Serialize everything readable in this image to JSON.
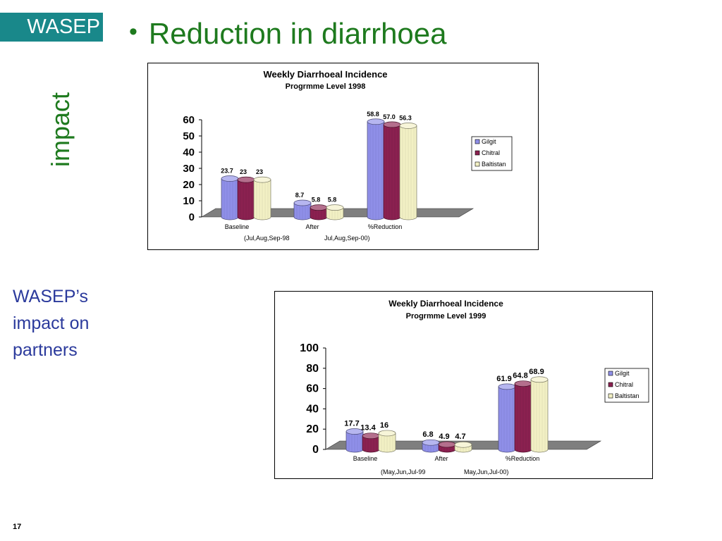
{
  "logo": {
    "text": "WASEP"
  },
  "slide": {
    "bullet": "•",
    "title": "Reduction in diarrhoea",
    "vertical_label": "impact",
    "side_lines": [
      "WASEP’s",
      "impact on",
      "partners"
    ],
    "page_number": "17"
  },
  "colors": {
    "gilgit": "#8f8fe8",
    "chitral": "#8b2150",
    "baltistan": "#f2f0c4",
    "floor": "#7f7f7f",
    "title_green": "#1e7a1e",
    "side_blue": "#2b3a9c",
    "logo_teal": "#19888a"
  },
  "chart_data": [
    {
      "type": "bar",
      "title": "Weekly Diarrhoeal Incidence",
      "subtitle": "Progrmme Level 1998",
      "categories": [
        "Baseline",
        "After",
        "%Reduction"
      ],
      "series": [
        {
          "name": "Gilgit",
          "values": [
            23.7,
            8.7,
            58.8
          ],
          "labels": [
            "23.7",
            "8.7",
            "58.8"
          ]
        },
        {
          "name": "Chitral",
          "values": [
            23,
            5.8,
            57.0
          ],
          "labels": [
            "23",
            "5.8",
            "57.0"
          ]
        },
        {
          "name": "Baltistan",
          "values": [
            23,
            5.8,
            56.3
          ],
          "labels": [
            "23",
            "5.8",
            "56.3"
          ]
        }
      ],
      "y_ticks": [
        "0",
        "10",
        "20",
        "30",
        "40",
        "50",
        "60"
      ],
      "ylim": [
        0,
        60
      ],
      "xnote": [
        "(Jul,Aug,Sep-98",
        "Jul,Aug,Sep-00)"
      ],
      "legend": "right",
      "style": "3d-cylinder"
    },
    {
      "type": "bar",
      "title": "Weekly Diarrhoeal Incidence",
      "subtitle": "Progrmme Level 1999",
      "categories": [
        "Baseline",
        "After",
        "%Reduction"
      ],
      "series": [
        {
          "name": "Gilgit",
          "values": [
            17.7,
            6.8,
            61.9
          ],
          "labels": [
            "17.7",
            "6.8",
            "61.9"
          ]
        },
        {
          "name": "Chitral",
          "values": [
            13.4,
            4.9,
            64.8
          ],
          "labels": [
            "13.4",
            "4.9",
            "64.8"
          ]
        },
        {
          "name": "Baltistan",
          "values": [
            16,
            4.7,
            68.9
          ],
          "labels": [
            "16",
            "4.7",
            "68.9"
          ]
        }
      ],
      "y_ticks": [
        "0",
        "20",
        "40",
        "60",
        "80",
        "100"
      ],
      "ylim": [
        0,
        100
      ],
      "xnote": [
        "(May,Jun,Jul-99",
        "May,Jun,Jul-00)"
      ],
      "legend": "right",
      "style": "3d-cylinder"
    }
  ]
}
